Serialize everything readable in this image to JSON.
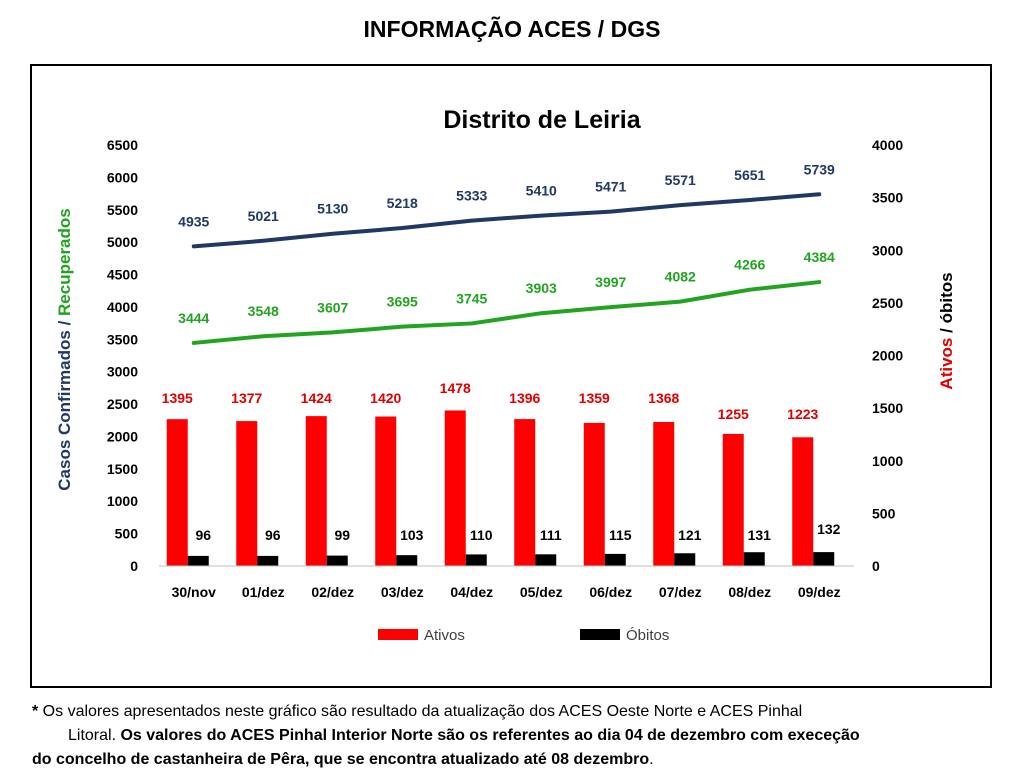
{
  "header": {
    "title": "INFORMAÇÃO ACES / DGS"
  },
  "chart_data": {
    "type": "bar",
    "title": "Distrito de Leiria",
    "categories": [
      "30/nov",
      "01/dez",
      "02/dez",
      "03/dez",
      "04/dez",
      "05/dez",
      "06/dez",
      "07/dez",
      "08/dez",
      "09/dez"
    ],
    "left_axis": {
      "label_parts": [
        {
          "text": "Casos Confirmados / ",
          "color": "#1f3864"
        },
        {
          "text": "Recuperados",
          "color": "#22a321"
        }
      ],
      "range": [
        0,
        6500
      ],
      "ticks": [
        "0",
        "500",
        "1000",
        "1500",
        "2000",
        "2500",
        "3000",
        "3500",
        "4000",
        "4500",
        "5000",
        "5500",
        "6000",
        "6500"
      ]
    },
    "right_axis": {
      "label_parts": [
        {
          "text": "Ativos",
          "color": "#e00000"
        },
        {
          "text": " / óbitos",
          "color": "#000000"
        }
      ],
      "range": [
        0,
        4000
      ],
      "ticks": [
        "0",
        "500",
        "1000",
        "1500",
        "2000",
        "2500",
        "3000",
        "3500",
        "4000"
      ]
    },
    "series": [
      {
        "name": "Casos Confirmados",
        "type": "line",
        "axis": "left",
        "color": "#1f3864",
        "values": [
          4935,
          5021,
          5130,
          5218,
          5333,
          5410,
          5471,
          5571,
          5651,
          5739
        ]
      },
      {
        "name": "Recuperados",
        "type": "line",
        "axis": "left",
        "color": "#22a321",
        "values": [
          3444,
          3548,
          3607,
          3695,
          3745,
          3903,
          3997,
          4082,
          4266,
          4384
        ]
      },
      {
        "name": "Ativos",
        "type": "bar",
        "axis": "right",
        "color": "#ff0000",
        "label_color": "#e00000",
        "values": [
          1395,
          1377,
          1424,
          1420,
          1478,
          1396,
          1359,
          1368,
          1255,
          1223
        ]
      },
      {
        "name": "Óbitos",
        "type": "bar",
        "axis": "right",
        "color": "#000000",
        "label_color": "#000000",
        "values": [
          96,
          96,
          99,
          103,
          110,
          111,
          115,
          121,
          131,
          132
        ]
      }
    ],
    "legend": {
      "position": "bottom",
      "items": [
        "Ativos",
        "Óbitos"
      ]
    },
    "grid": false
  },
  "footnote": {
    "marker": "*",
    "line1": " Os valores apresentados neste gráfico são resultado da atualização dos ACES Oeste Norte e ACES Pinhal",
    "line2_normal": "Litoral. ",
    "line2_bold": "Os valores do ACES Pinhal Interior Norte são os referentes ao dia 04 de dezembro com execeção",
    "line3_bold": "do concelho de castanheira de Pêra, que se encontra atualizado até 08 dezembro",
    "line3_end": "."
  }
}
